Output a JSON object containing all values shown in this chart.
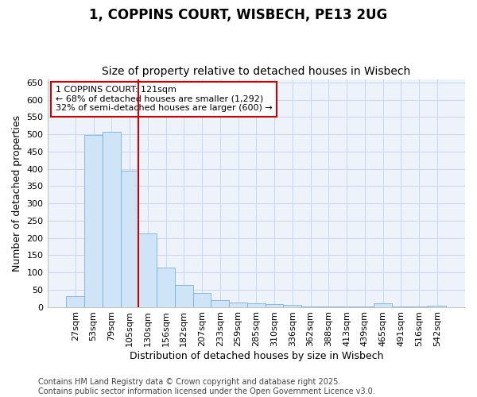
{
  "title1": "1, COPPINS COURT, WISBECH, PE13 2UG",
  "title2": "Size of property relative to detached houses in Wisbech",
  "xlabel": "Distribution of detached houses by size in Wisbech",
  "ylabel": "Number of detached properties",
  "categories": [
    "27sqm",
    "53sqm",
    "79sqm",
    "105sqm",
    "130sqm",
    "156sqm",
    "182sqm",
    "207sqm",
    "233sqm",
    "259sqm",
    "285sqm",
    "310sqm",
    "336sqm",
    "362sqm",
    "388sqm",
    "413sqm",
    "439sqm",
    "465sqm",
    "491sqm",
    "516sqm",
    "542sqm"
  ],
  "values": [
    32,
    497,
    507,
    395,
    213,
    113,
    63,
    40,
    20,
    13,
    10,
    8,
    5,
    2,
    2,
    2,
    2,
    10,
    2,
    2,
    3
  ],
  "bar_color": "#d0e4f7",
  "bar_edge_color": "#7ab0de",
  "vline_color": "#cc0000",
  "annotation_text": "1 COPPINS COURT: 121sqm\n← 68% of detached houses are smaller (1,292)\n32% of semi-detached houses are larger (600) →",
  "annotation_box_facecolor": "#ffffff",
  "annotation_box_edgecolor": "#cc0000",
  "ylim": [
    0,
    660
  ],
  "yticks": [
    0,
    50,
    100,
    150,
    200,
    250,
    300,
    350,
    400,
    450,
    500,
    550,
    600,
    650
  ],
  "grid_color": "#c8d8ec",
  "bg_color": "#ffffff",
  "plot_bg_color": "#eef3fb",
  "footnote": "Contains HM Land Registry data © Crown copyright and database right 2025.\nContains public sector information licensed under the Open Government Licence v3.0.",
  "title_fontsize": 12,
  "subtitle_fontsize": 10,
  "label_fontsize": 9,
  "tick_fontsize": 8,
  "footnote_fontsize": 7
}
